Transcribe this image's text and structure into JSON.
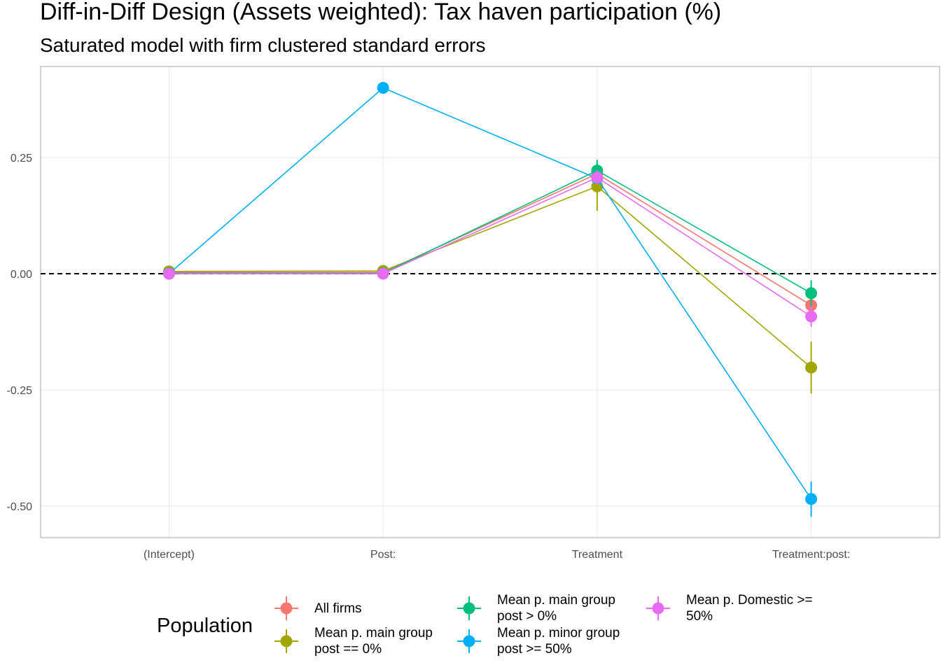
{
  "chart_data": {
    "type": "pointrange",
    "title": "Diff-in-Diff Design (Assets weighted): Tax haven participation (%)",
    "subtitle": "Saturated model with firm clustered standard errors",
    "categories": [
      "(Intercept)",
      "Post:",
      "Treatment",
      "Treatment:post:"
    ],
    "legend_title": "Population",
    "series": [
      {
        "name": "All firms",
        "color": "#F8766D",
        "values": [
          0.003,
          0.003,
          0.215,
          -0.068
        ],
        "errors": [
          0.004,
          0.004,
          0.012,
          0.012
        ]
      },
      {
        "name": "Mean p. main group\npost == 0%",
        "color": "#A3A500",
        "values": [
          0.005,
          0.006,
          0.188,
          -0.202
        ],
        "errors": [
          0.004,
          0.004,
          0.053,
          0.056
        ]
      },
      {
        "name": "Mean p. main group\npost > 0%",
        "color": "#00BF7D",
        "values": [
          0.001,
          0.001,
          0.222,
          -0.042
        ],
        "errors": [
          0.003,
          0.003,
          0.023,
          0.028
        ]
      },
      {
        "name": "Mean p. minor group\npost >= 50%",
        "color": "#00B0F6",
        "values": [
          0.0,
          0.4,
          0.205,
          -0.485
        ],
        "errors": [
          0.002,
          0.005,
          0.012,
          0.038
        ]
      },
      {
        "name": "Mean p. Domestic >=\n50%",
        "color": "#E76BF3",
        "values": [
          0.0,
          0.0,
          0.207,
          -0.092
        ],
        "errors": [
          0.002,
          0.002,
          0.015,
          0.022
        ]
      }
    ],
    "ylim": [
      -0.568,
      0.446
    ],
    "yticks": [
      {
        "value": -0.5,
        "label": "-0.50"
      },
      -0.25,
      {
        "value": 0,
        "label": "0.00"
      },
      0.25
    ],
    "hline": 0,
    "grid": true,
    "legend_position": "bottom"
  }
}
